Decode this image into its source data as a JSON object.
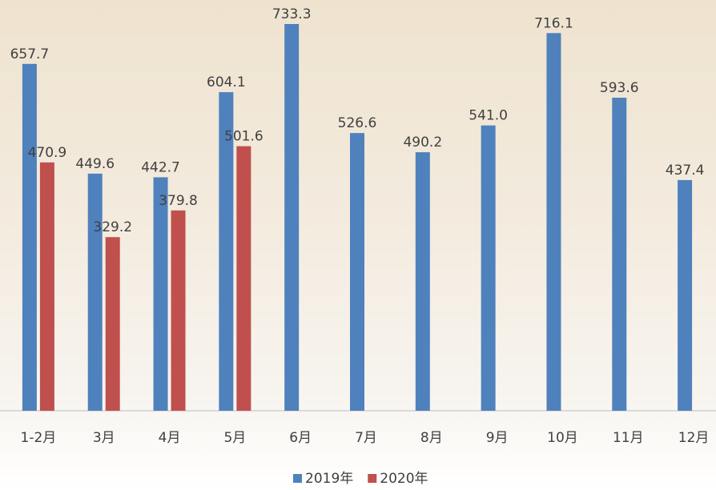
{
  "chart_data": {
    "type": "bar",
    "categories": [
      "1-2月",
      "3月",
      "4月",
      "5月",
      "6月",
      "7月",
      "8月",
      "9月",
      "10月",
      "11月",
      "12月"
    ],
    "series": [
      {
        "name": "2019年",
        "color": "#4f81bd",
        "values": [
          657.7,
          449.6,
          442.7,
          604.1,
          733.3,
          526.6,
          490.2,
          541.0,
          716.1,
          593.6,
          437.4
        ],
        "value_labels": [
          "657.7",
          "449.6",
          "442.7",
          "604.1",
          "733.3",
          "526.6",
          "490.2",
          "541.0",
          "716.1",
          "593.6",
          "437.4"
        ]
      },
      {
        "name": "2020年",
        "color": "#c0504d",
        "values": [
          470.9,
          329.2,
          379.8,
          501.6,
          null,
          null,
          null,
          null,
          null,
          null,
          null
        ]
      }
    ],
    "legend": "bottom"
  }
}
